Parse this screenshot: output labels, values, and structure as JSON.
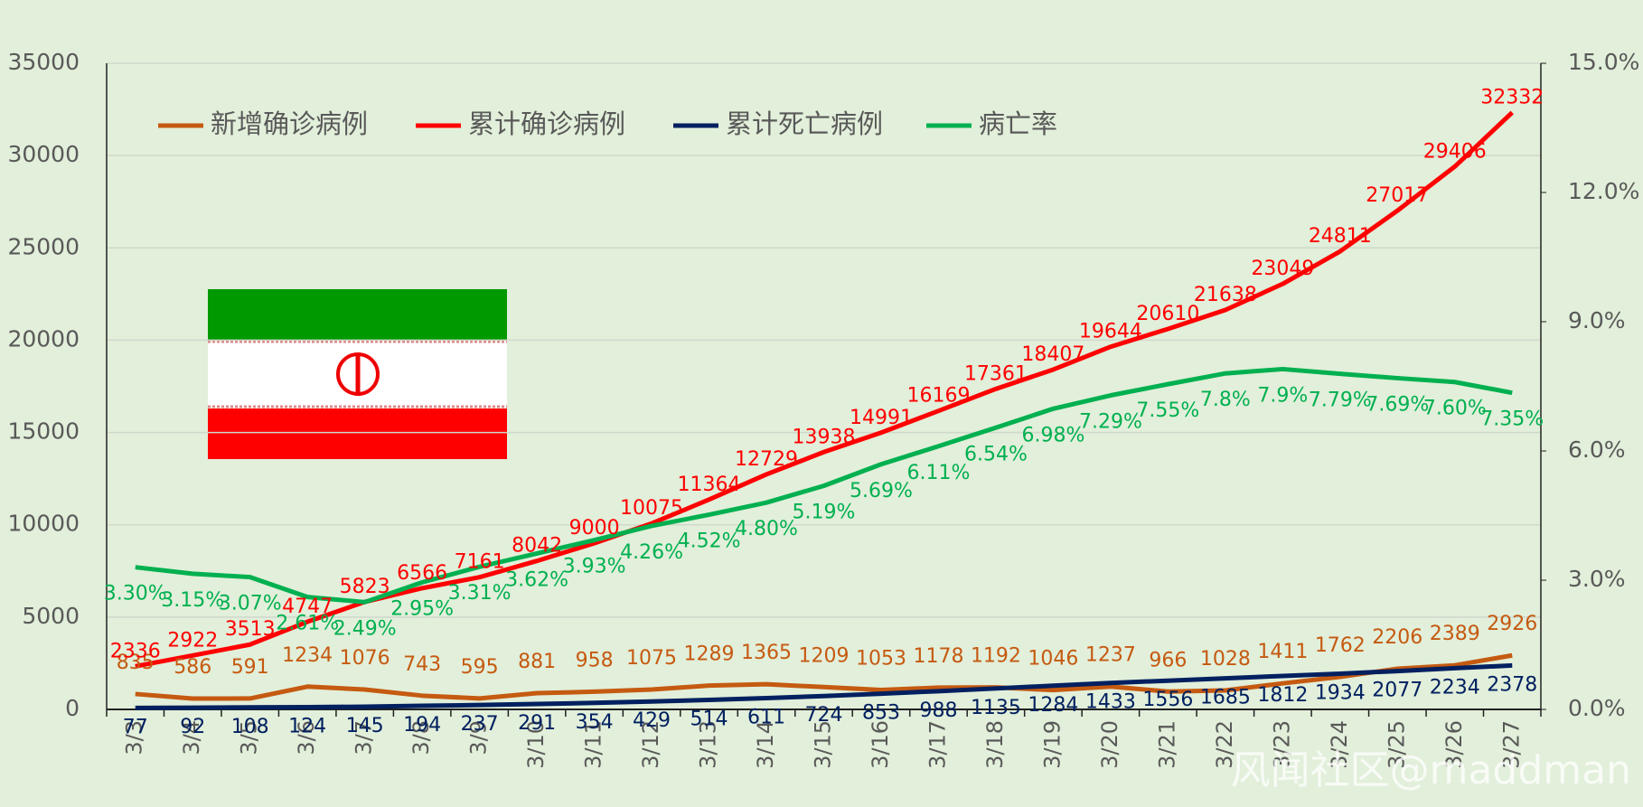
{
  "chart_data": {
    "type": "line",
    "categories": [
      "3/3",
      "3/4",
      "3/5",
      "3/6",
      "3/7",
      "3/8",
      "3/9",
      "3/10",
      "3/11",
      "3/12",
      "3/13",
      "3/14",
      "3/15",
      "3/16",
      "3/17",
      "3/18",
      "3/19",
      "3/20",
      "3/21",
      "3/22",
      "3/23",
      "3/24",
      "3/25",
      "3/26",
      "3/27"
    ],
    "series": [
      {
        "name": "新增确诊病例",
        "color": "#c55a11",
        "values": [
          835,
          586,
          591,
          1234,
          1076,
          743,
          595,
          881,
          958,
          1075,
          1289,
          1365,
          1209,
          1053,
          1178,
          1192,
          1046,
          1237,
          966,
          1028,
          1411,
          1762,
          2206,
          2389,
          2926
        ]
      },
      {
        "name": "累计确诊病例",
        "color": "#ff0000",
        "values": [
          2336,
          2922,
          3513,
          4747,
          5823,
          6566,
          7161,
          8042,
          9000,
          10075,
          11364,
          12729,
          13938,
          14991,
          16169,
          17361,
          18407,
          19644,
          20610,
          21638,
          23049,
          24811,
          27017,
          29406,
          32332
        ]
      },
      {
        "name": "累计死亡病例",
        "color": "#002060",
        "values": [
          77,
          92,
          108,
          124,
          145,
          194,
          237,
          291,
          354,
          429,
          514,
          611,
          724,
          853,
          988,
          1135,
          1284,
          1433,
          1556,
          1685,
          1812,
          1934,
          2077,
          2234,
          2378
        ]
      },
      {
        "name": "病亡率",
        "color": "#00b050",
        "axis": "y2",
        "values": [
          3.3,
          3.15,
          3.07,
          2.61,
          2.49,
          2.95,
          3.31,
          3.62,
          3.93,
          4.26,
          4.52,
          4.8,
          5.19,
          5.69,
          6.11,
          6.54,
          6.98,
          7.29,
          7.55,
          7.8,
          7.9,
          7.79,
          7.69,
          7.6,
          7.35
        ],
        "value_labels": [
          "3.30%",
          "3.15%",
          "3.07%",
          "2.61%",
          "2.49%",
          "2.95%",
          "3.31%",
          "3.62%",
          "3.93%",
          "4.26%",
          "4.52%",
          "4.80%",
          "5.19%",
          "5.69%",
          "6.11%",
          "6.54%",
          "6.98%",
          "7.29%",
          "7.55%",
          "7.8%",
          "7.9%",
          "7.79%",
          "7.69%",
          "7.60%",
          "7.35%"
        ]
      }
    ],
    "ylim": [
      0,
      35000
    ],
    "yticks": [
      0,
      5000,
      10000,
      15000,
      20000,
      25000,
      30000,
      35000
    ],
    "y2lim": [
      0,
      15
    ],
    "y2ticks": [
      {
        "value": 0,
        "label": "0.0%"
      },
      {
        "value": 3,
        "label": "3.0%"
      },
      {
        "value": 6,
        "label": "6.0%"
      },
      {
        "value": 9,
        "label": "9.0%"
      },
      {
        "value": 12,
        "label": "12.0%"
      },
      {
        "value": 15,
        "label": "15.0%"
      }
    ],
    "grid": true,
    "legend": "top-left",
    "watermark": "风闻社区@maddman"
  }
}
